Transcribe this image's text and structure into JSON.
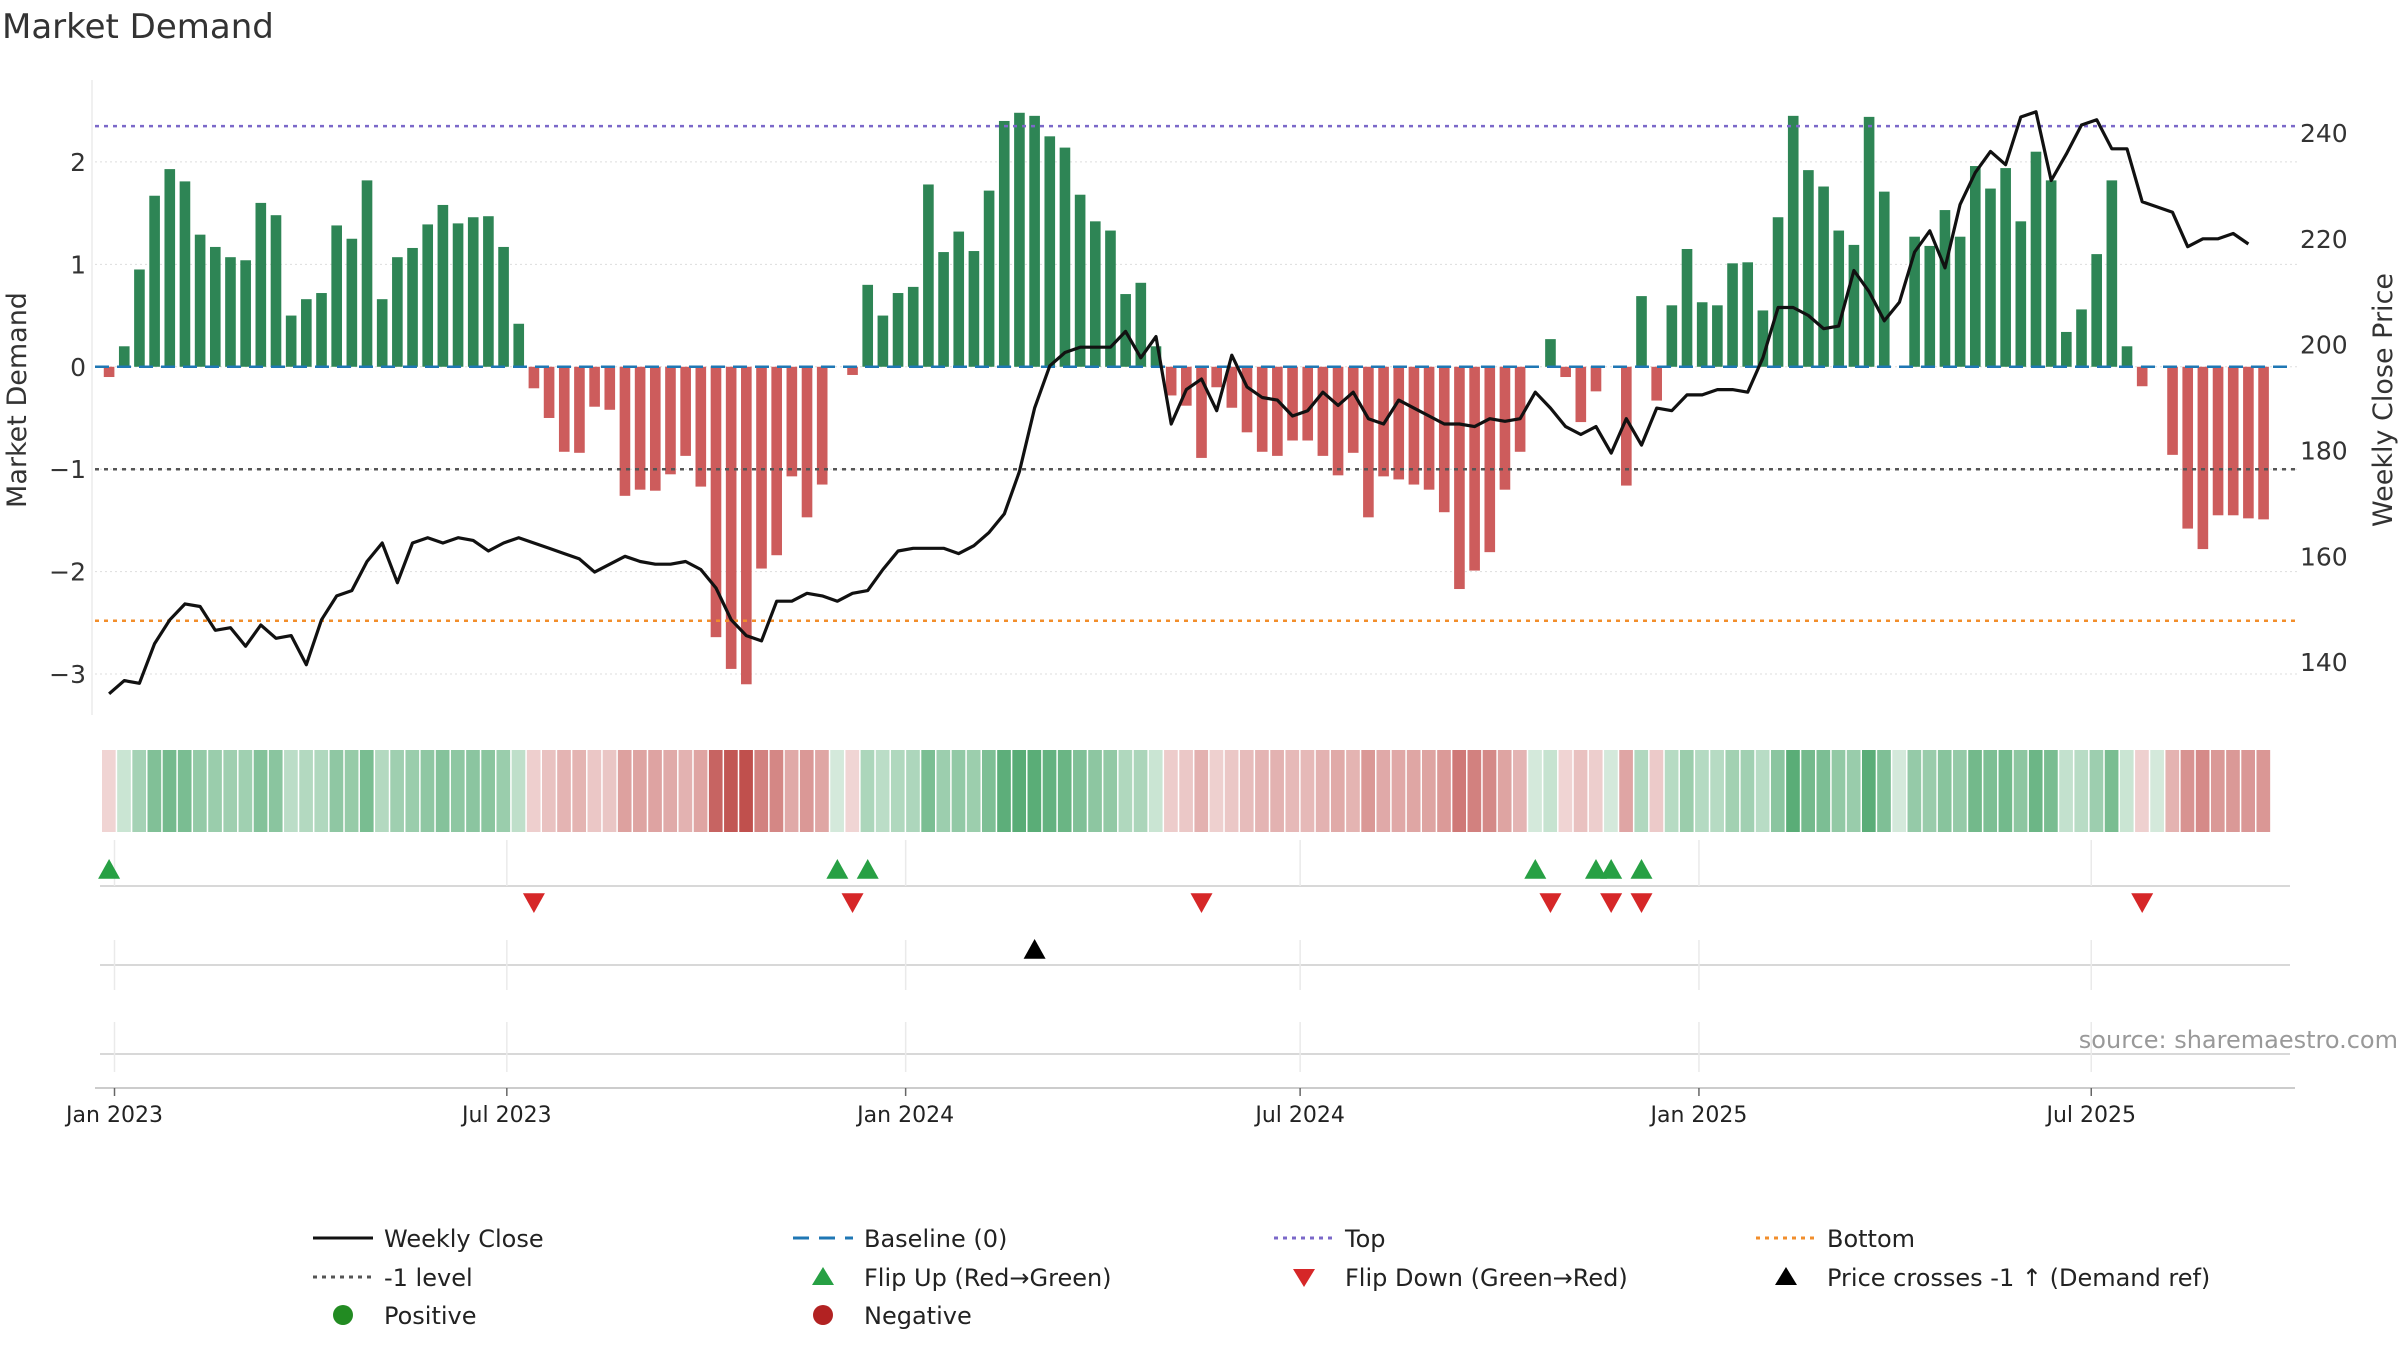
{
  "source_note": "source: sharemaestro.com",
  "chart_data": {
    "type": "bar",
    "title": "Market Demand",
    "ylabel_left": "Market Demand",
    "ylabel_right": "Weekly Close Price",
    "ylim_left": [
      -3.4,
      2.8
    ],
    "ylim_right": [
      130,
      250
    ],
    "yticks_left": [
      {
        "value": 2,
        "label": "2"
      },
      {
        "value": 1,
        "label": "1"
      },
      {
        "value": 0,
        "label": "0"
      },
      {
        "value": -1,
        "label": "−1"
      },
      {
        "value": -2,
        "label": "−2"
      },
      {
        "value": -3,
        "label": "−3"
      }
    ],
    "yticks_right": [
      {
        "value": 240,
        "label": "240"
      },
      {
        "value": 220,
        "label": "220"
      },
      {
        "value": 200,
        "label": "200"
      },
      {
        "value": 180,
        "label": "180"
      },
      {
        "value": 160,
        "label": "160"
      },
      {
        "value": 140,
        "label": "140"
      }
    ],
    "x_start": "2022-12-23",
    "x_end": "2025-10-03",
    "xticks": [
      {
        "date": "2023-01-01",
        "label": "Jan 2023"
      },
      {
        "date": "2023-07-01",
        "label": "Jul 2023"
      },
      {
        "date": "2024-01-01",
        "label": "Jan 2024"
      },
      {
        "date": "2024-07-01",
        "label": "Jul 2024"
      },
      {
        "date": "2025-01-01",
        "label": "Jan 2025"
      },
      {
        "date": "2025-07-01",
        "label": "Jul 2025"
      }
    ],
    "week_start": "2022-12-26",
    "reference_lines": {
      "top": 2.35,
      "bottom": -2.48,
      "minus_one": -1,
      "baseline": 0
    },
    "demand": [
      -0.1,
      0.2,
      0.95,
      1.67,
      1.93,
      1.81,
      1.29,
      1.17,
      1.07,
      1.04,
      1.6,
      1.48,
      0.5,
      0.66,
      0.72,
      1.38,
      1.25,
      1.82,
      0.66,
      1.07,
      1.16,
      1.39,
      1.58,
      1.4,
      1.46,
      1.47,
      1.17,
      0.42,
      -0.21,
      -0.5,
      -0.83,
      -0.84,
      -0.39,
      -0.42,
      -1.26,
      -1.2,
      -1.21,
      -1.05,
      -0.87,
      -1.17,
      -2.64,
      -2.95,
      -3.1,
      -1.97,
      -1.84,
      -1.07,
      -1.47,
      -1.15,
      0.0,
      -0.08,
      0.8,
      0.5,
      0.72,
      0.78,
      1.78,
      1.12,
      1.32,
      1.13,
      1.72,
      2.4,
      2.48,
      2.45,
      2.25,
      2.14,
      1.68,
      1.42,
      1.33,
      0.71,
      0.82,
      0.2,
      -0.28,
      -0.38,
      -0.89,
      -0.2,
      -0.4,
      -0.64,
      -0.83,
      -0.87,
      -0.72,
      -0.72,
      -0.87,
      -1.06,
      -0.84,
      -1.47,
      -1.07,
      -1.1,
      -1.15,
      -1.2,
      -1.42,
      -2.17,
      -1.99,
      -1.81,
      -1.2,
      -0.83,
      0.0,
      0.27,
      -0.1,
      -0.54,
      -0.24,
      0.0,
      -1.16,
      0.69,
      -0.33,
      0.6,
      1.15,
      0.63,
      0.6,
      1.01,
      1.02,
      0.55,
      1.46,
      2.45,
      1.92,
      1.76,
      1.33,
      1.19,
      2.44,
      1.71,
      0.0,
      1.27,
      1.18,
      1.53,
      1.27,
      1.96,
      1.74,
      1.94,
      1.42,
      2.1,
      1.82,
      0.34,
      0.56,
      1.1,
      1.82,
      0.2,
      -0.19,
      0.0,
      -0.86,
      -1.58,
      -1.78,
      -1.45,
      -1.45,
      -1.48,
      -1.49
    ],
    "close": [
      134,
      136.5,
      136,
      143.5,
      148,
      151,
      150.5,
      146,
      146.5,
      143,
      147,
      144.5,
      145,
      139.5,
      148,
      152.5,
      153.5,
      159,
      162.5,
      155,
      162.5,
      163.5,
      162.5,
      163.5,
      163,
      161,
      162.5,
      163.5,
      162.5,
      161.5,
      160.5,
      159.5,
      157,
      158.5,
      160,
      159,
      158.5,
      158.5,
      159,
      157.5,
      154,
      148,
      145,
      144,
      151.5,
      151.5,
      153,
      152.5,
      151.5,
      153,
      153.5,
      157.5,
      161,
      161.5,
      161.5,
      161.5,
      160.5,
      162,
      164.5,
      168,
      176,
      188,
      196,
      198.5,
      199.5,
      199.5,
      199.5,
      202.5,
      197.5,
      201.5,
      185,
      191.5,
      193.5,
      187.5,
      198,
      192,
      190,
      189.5,
      186.5,
      187.5,
      191,
      188.5,
      191,
      186,
      185,
      189.5,
      188,
      186.5,
      185,
      185,
      184.5,
      186,
      185.5,
      186,
      191,
      188,
      184.5,
      183,
      184.5,
      179.5,
      186,
      181,
      188,
      187.5,
      190.5,
      190.5,
      191.5,
      191.5,
      191,
      197.5,
      207,
      207,
      205.5,
      203,
      203.5,
      214,
      210,
      204.5,
      208,
      217.5,
      221.5,
      214.5,
      226.5,
      232.5,
      236.5,
      234,
      243,
      244,
      231,
      236,
      241.5,
      242.5,
      237,
      237,
      227,
      226,
      225,
      218.5,
      220,
      220,
      221,
      219
    ]
  },
  "lanes": {
    "flip_up_dates": [
      "2022-12-26",
      "2023-11-27",
      "2023-12-11",
      "2024-10-14",
      "2024-11-11",
      "2024-11-18",
      "2024-12-02"
    ],
    "flip_down_dates": [
      "2023-07-10",
      "2023-12-04",
      "2024-05-13",
      "2024-10-21",
      "2024-11-18",
      "2024-12-02",
      "2025-07-21"
    ],
    "price_cross_dates": [
      "2024-02-26"
    ]
  },
  "colors": {
    "positive": "#2e8555",
    "negative": "#cd5c5c",
    "close_line": "#111111",
    "baseline": "#1f77b4",
    "top_line": "#7b68c9",
    "bottom_line": "#f28e2b",
    "minus_one_line": "#555555",
    "flip_up": "#27a044",
    "flip_down": "#d62728",
    "cross_marker": "#000000",
    "legend_positive": "#228b22",
    "legend_negative": "#b22222",
    "grid": "#dddddd",
    "axis_text": "#333333",
    "source_text": "#999999"
  },
  "legend": [
    {
      "key": "weekly_close",
      "label": "Weekly Close",
      "symbol": "line-solid",
      "color": "#111111"
    },
    {
      "key": "baseline",
      "label": "Baseline (0)",
      "symbol": "line-dash",
      "color": "#1f77b4"
    },
    {
      "key": "top",
      "label": "Top",
      "symbol": "line-dot",
      "color": "#7b68c9"
    },
    {
      "key": "bottom",
      "label": "Bottom",
      "symbol": "line-dot",
      "color": "#f28e2b"
    },
    {
      "key": "minus_one",
      "label": "-1 level",
      "symbol": "line-dot",
      "color": "#555555"
    },
    {
      "key": "flip_up",
      "label": "Flip Up (Red→Green)",
      "symbol": "triangle-up",
      "color": "#27a044"
    },
    {
      "key": "flip_down",
      "label": "Flip Down (Green→Red)",
      "symbol": "triangle-down",
      "color": "#d62728"
    },
    {
      "key": "price_cross",
      "label": "Price crosses -1 ↑ (Demand ref)",
      "symbol": "triangle-up",
      "color": "#000000"
    },
    {
      "key": "positive",
      "label": "Positive",
      "symbol": "circle",
      "color": "#228b22"
    },
    {
      "key": "negative",
      "label": "Negative",
      "symbol": "circle",
      "color": "#b22222"
    }
  ]
}
